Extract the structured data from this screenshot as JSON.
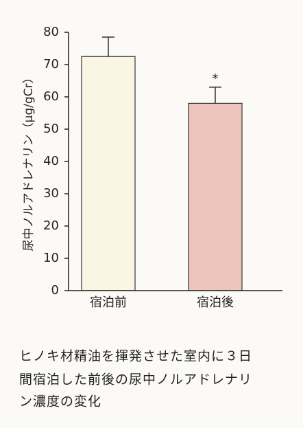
{
  "chart_data": {
    "type": "bar",
    "y_label": "尿中ノルアドレナリン（μg/gCr）",
    "categories": [
      "宿泊前",
      "宿泊後"
    ],
    "series": [
      {
        "name": "尿中ノルアドレナリン",
        "values": [
          72.5,
          58
        ],
        "errors": [
          6,
          5
        ]
      }
    ],
    "colors": [
      "#fbf5e4",
      "#eec5bd"
    ],
    "annotation": "*",
    "ylim": [
      0,
      80
    ],
    "yticks": [
      0,
      10,
      20,
      30,
      40,
      50,
      60,
      70,
      80
    ],
    "grid": false
  },
  "caption": [
    "ヒノキ材精油を揮発させた室内に３日",
    "間宿泊した前後の尿中ノルアドレナリ",
    "ン濃度の変化"
  ]
}
